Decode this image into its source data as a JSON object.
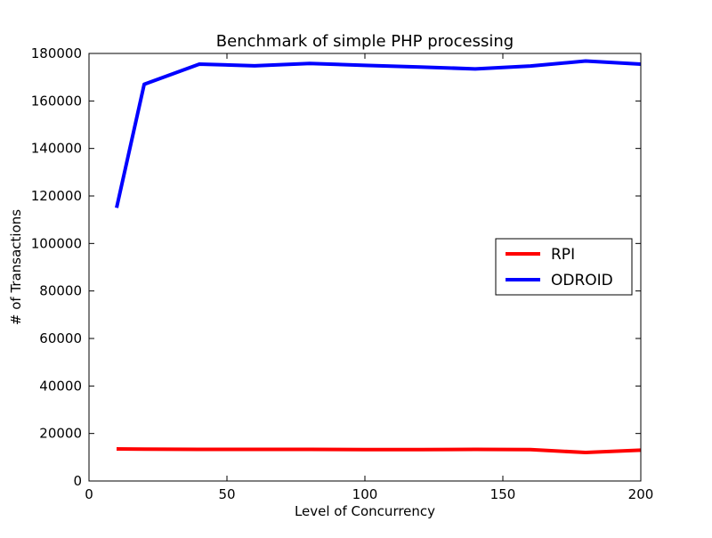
{
  "chart_data": {
    "type": "line",
    "title": "Benchmark of simple PHP processing",
    "xlabel": "Level of Concurrency",
    "ylabel": "# of Transactions",
    "xlim": [
      0,
      200
    ],
    "ylim": [
      0,
      180000
    ],
    "x_ticks": [
      0,
      50,
      100,
      150,
      200
    ],
    "y_ticks": [
      0,
      20000,
      40000,
      60000,
      80000,
      100000,
      120000,
      140000,
      160000,
      180000
    ],
    "x_tick_labels": [
      "0",
      "50",
      "100",
      "150",
      "200"
    ],
    "y_tick_labels": [
      "0",
      "20000",
      "40000",
      "60000",
      "80000",
      "100000",
      "120000",
      "140000",
      "160000",
      "180000"
    ],
    "grid": false,
    "legend_position": "center-right",
    "x": [
      10,
      20,
      40,
      60,
      80,
      100,
      120,
      140,
      160,
      180,
      200
    ],
    "series": [
      {
        "name": "RPI",
        "color": "#ff0000",
        "values": [
          13500,
          13400,
          13300,
          13300,
          13300,
          13200,
          13200,
          13300,
          13200,
          12000,
          13000
        ]
      },
      {
        "name": "ODROID",
        "color": "#0000ff",
        "values": [
          115000,
          167000,
          175500,
          174800,
          175800,
          175000,
          174300,
          173500,
          174700,
          176800,
          175500
        ]
      }
    ]
  }
}
